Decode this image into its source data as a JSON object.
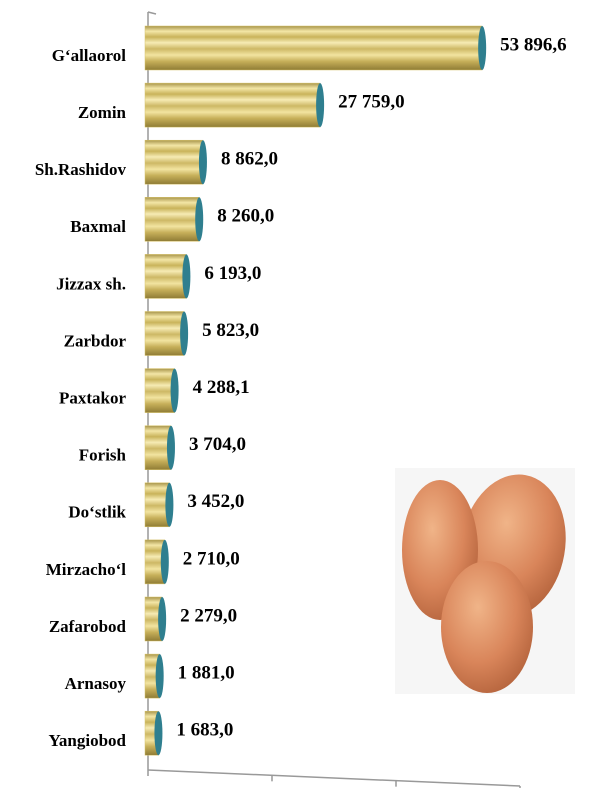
{
  "chart_data": {
    "type": "barh",
    "categories": [
      "G‘allaorol",
      "Zomin",
      "Sh.Rashidov",
      "Baxmal",
      "Jizzax sh.",
      "Zarbdor",
      "Paxtakor",
      "Forish",
      "Do‘stlik",
      "Mirzacho‘l",
      "Zafarobod",
      "Arnasoy",
      "Yangiobod"
    ],
    "values": [
      53896.6,
      27759.0,
      8862.0,
      8260.0,
      6193.0,
      5823.0,
      4288.1,
      3704.0,
      3452.0,
      2710.0,
      2279.0,
      1881.0,
      1683.0
    ],
    "value_labels": [
      "53 896,6",
      "27 759,0",
      "8 862,0",
      "8 260,0",
      "6 193,0",
      "5 823,0",
      "4 288,1",
      "3 704,0",
      "3 452,0",
      "2 710,0",
      "2 279,0",
      "1 881,0",
      "1 683,0"
    ],
    "color": "#d8c36a",
    "xlim": [
      0,
      60000
    ],
    "xticks": [
      0,
      20000,
      40000,
      60000
    ]
  }
}
